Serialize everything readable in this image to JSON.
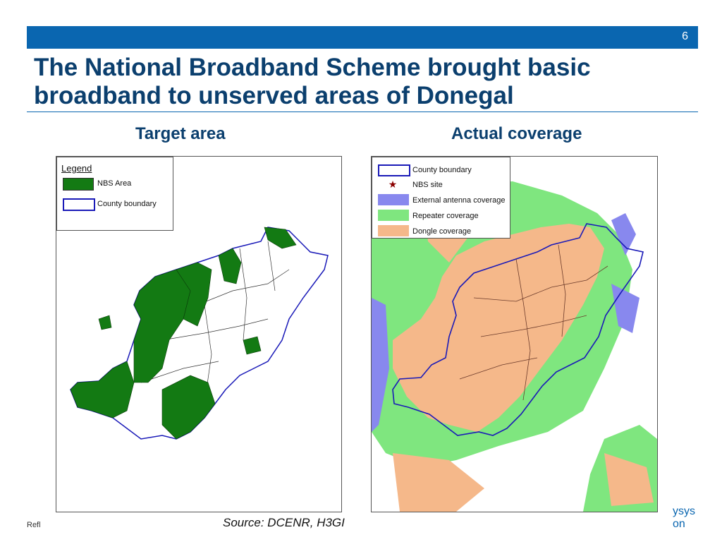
{
  "slide_number": "6",
  "title": "The National Broadband Scheme brought basic broadband to unserved areas of Donegal",
  "left_map": {
    "heading": "Target area",
    "legend": {
      "title": "Legend",
      "items": [
        {
          "label": "NBS Area",
          "color": "#137a13"
        },
        {
          "label": "County boundary",
          "color": "#1a1ab8"
        }
      ]
    }
  },
  "right_map": {
    "heading": "Actual coverage",
    "legend": {
      "items": [
        {
          "label": "County boundary",
          "color": "#1a1ab8"
        },
        {
          "label": "NBS site",
          "color": "#8b0000"
        },
        {
          "label": "External antenna coverage",
          "color": "#8888ee"
        },
        {
          "label": "Repeater coverage",
          "color": "#7fe67f"
        },
        {
          "label": "Dongle coverage",
          "color": "#f5b88a"
        }
      ]
    }
  },
  "source": "Source: DCENR, H3GI",
  "footer_left": "Refl",
  "brand": {
    "line1": "ysys",
    "line2": "on"
  }
}
